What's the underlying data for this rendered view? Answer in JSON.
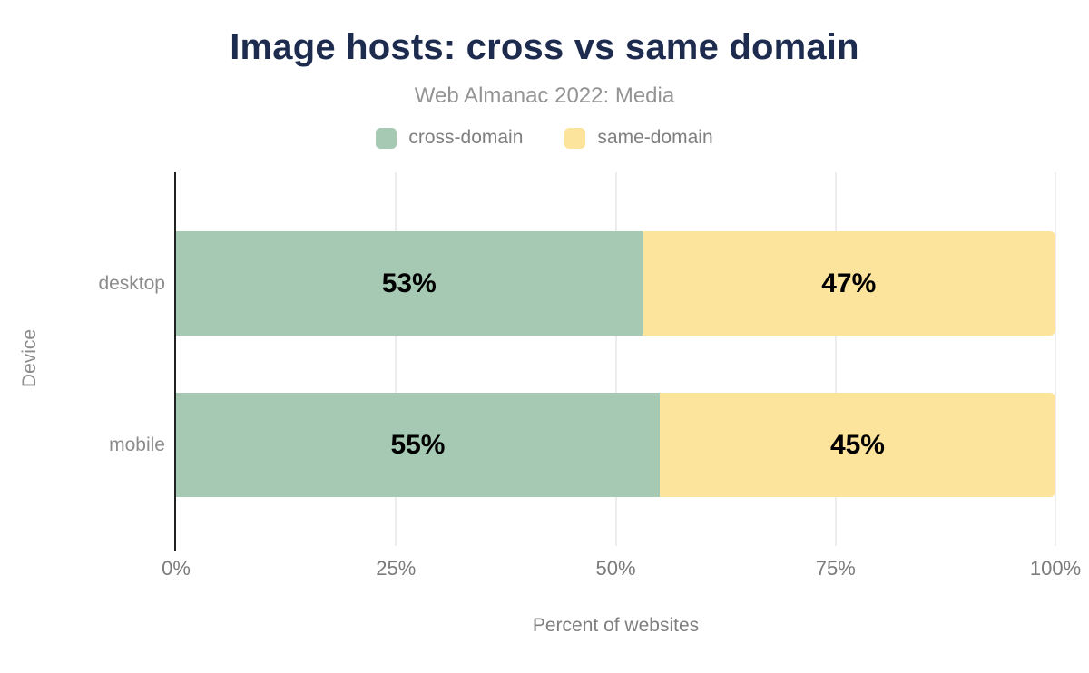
{
  "header": {
    "title": "Image hosts: cross vs same domain",
    "subtitle": "Web Almanac 2022: Media"
  },
  "colors": {
    "title_text": "#1d2b4e",
    "muted_text": "#8c8c8c",
    "axis_line": "#212121",
    "gridline": "#ededed",
    "cross_domain": "#a6c9b4",
    "same_domain": "#fde49c",
    "bar_label": "#000000"
  },
  "chart_data": {
    "type": "bar",
    "stacked": true,
    "orientation": "horizontal",
    "title": "Image hosts: cross vs same domain",
    "subtitle": "Web Almanac 2022: Media",
    "categories": [
      "desktop",
      "mobile"
    ],
    "series": [
      {
        "name": "cross-domain",
        "color": "#a6c9b4",
        "values": [
          53,
          55
        ]
      },
      {
        "name": "same-domain",
        "color": "#fde49c",
        "values": [
          47,
          45
        ]
      }
    ],
    "value_labels": [
      [
        "53%",
        "47%"
      ],
      [
        "55%",
        "45%"
      ]
    ],
    "xlabel": "Percent of websites",
    "ylabel": "Device",
    "x_ticks": [
      "0%",
      "25%",
      "50%",
      "75%",
      "100%"
    ],
    "xlim": [
      0,
      100
    ],
    "grid": "vertical",
    "legend_position": "top"
  }
}
